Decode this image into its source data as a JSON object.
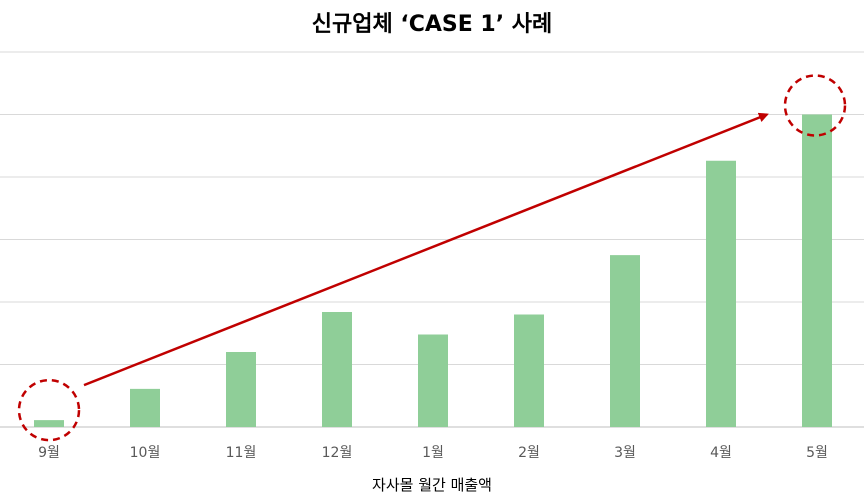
{
  "chart_data": {
    "type": "bar",
    "title": "신규업체 ‘CASE 1’ 사례",
    "xlabel": "자사몰 월간 매출액",
    "ylabel": "",
    "categories": [
      "9월",
      "10월",
      "11월",
      "12월",
      "1월",
      "2월",
      "3월",
      "4월",
      "5월"
    ],
    "values": [
      1.1,
      6.1,
      12.0,
      18.4,
      14.8,
      18.0,
      27.5,
      42.6,
      50.0
    ],
    "ylim": [
      0,
      60
    ],
    "grid": true,
    "legend": "none",
    "bar_color": "#8fce98",
    "annotations": {
      "trend_arrow": {
        "from_category": "9월",
        "to_category": "5월",
        "color": "#c00000"
      },
      "highlight_circles": [
        "9월",
        "5월"
      ]
    }
  }
}
